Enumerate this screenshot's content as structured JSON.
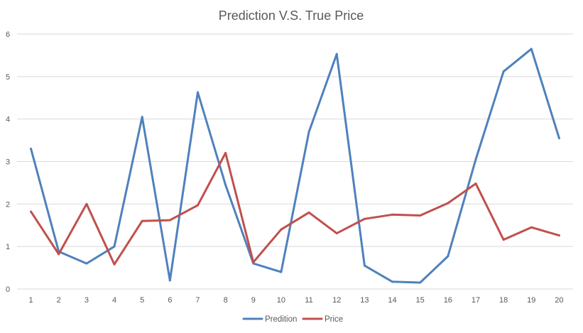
{
  "chart_data": {
    "type": "line",
    "title": "Prediction V.S. True Price",
    "xlabel": "",
    "ylabel": "",
    "ylim": [
      0,
      6
    ],
    "yticks": [
      0,
      1,
      2,
      3,
      4,
      5,
      6
    ],
    "grid": true,
    "legend_position": "bottom",
    "categories": [
      "1",
      "2",
      "3",
      "4",
      "5",
      "6",
      "7",
      "8",
      "9",
      "10",
      "11",
      "12",
      "13",
      "14",
      "15",
      "16",
      "17",
      "18",
      "19",
      "20"
    ],
    "series": [
      {
        "name": "Predition",
        "color": "#4f81bd",
        "values": [
          3.3,
          0.88,
          0.6,
          1.0,
          4.05,
          0.2,
          4.63,
          2.45,
          0.6,
          0.4,
          3.7,
          5.53,
          0.55,
          0.17,
          0.15,
          0.77,
          3.05,
          5.12,
          5.65,
          3.55
        ]
      },
      {
        "name": "Price",
        "color": "#c0504d",
        "values": [
          1.82,
          0.82,
          2.0,
          0.58,
          1.6,
          1.62,
          1.97,
          3.2,
          0.63,
          1.4,
          1.8,
          1.31,
          1.65,
          1.75,
          1.73,
          2.02,
          2.48,
          1.16,
          1.45,
          1.26
        ]
      }
    ]
  }
}
